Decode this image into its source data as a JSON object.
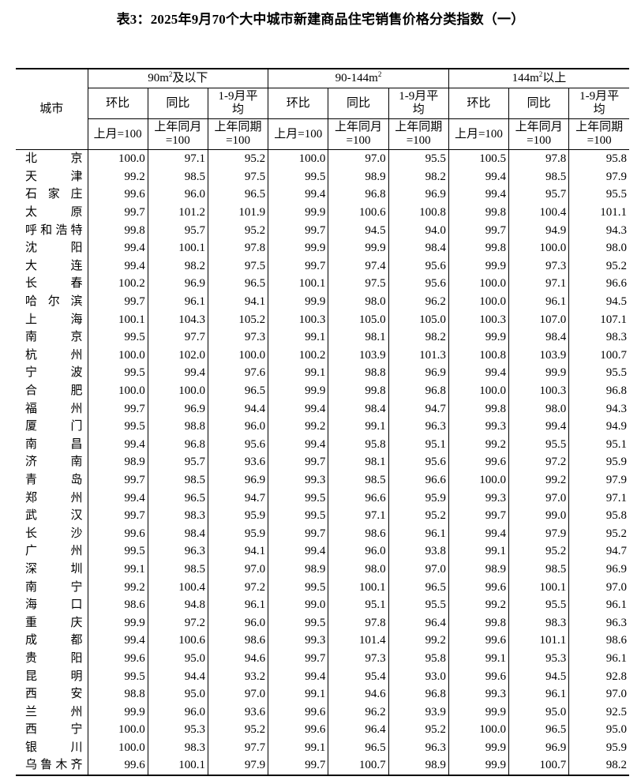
{
  "title": "表3：2025年9月70个大中城市新建商品住宅销售价格分类指数（一）",
  "header": {
    "city": "城市",
    "groups": [
      {
        "label": "90m",
        "sup": "2",
        "suffix": "及以下"
      },
      {
        "label": "90-144m",
        "sup": "2",
        "suffix": ""
      },
      {
        "label": "144m",
        "sup": "2",
        "suffix": "以上"
      }
    ],
    "sub": [
      {
        "label": "环比",
        "unit": "上月=100"
      },
      {
        "label": "同比",
        "unit": "上年同月=100"
      },
      {
        "label": "1-9月平均",
        "unit": "上年同期=100"
      }
    ]
  },
  "rows": [
    {
      "city": "北京",
      "v": [
        "100.0",
        "97.1",
        "95.2",
        "100.0",
        "97.0",
        "95.5",
        "100.5",
        "97.8",
        "95.8"
      ]
    },
    {
      "city": "天津",
      "v": [
        "99.2",
        "98.5",
        "97.5",
        "99.5",
        "98.9",
        "98.2",
        "99.4",
        "98.5",
        "97.9"
      ]
    },
    {
      "city": "石家庄",
      "v": [
        "99.6",
        "96.0",
        "96.5",
        "99.4",
        "96.8",
        "96.9",
        "99.4",
        "95.7",
        "95.5"
      ]
    },
    {
      "city": "太原",
      "v": [
        "99.7",
        "101.2",
        "101.9",
        "99.9",
        "100.6",
        "100.8",
        "99.8",
        "100.4",
        "101.1"
      ]
    },
    {
      "city": "呼和浩特",
      "v": [
        "99.8",
        "95.7",
        "95.2",
        "99.7",
        "94.5",
        "94.0",
        "99.7",
        "94.9",
        "94.3"
      ]
    },
    {
      "city": "沈阳",
      "v": [
        "99.4",
        "100.1",
        "97.8",
        "99.9",
        "99.9",
        "98.4",
        "99.8",
        "100.0",
        "98.0"
      ]
    },
    {
      "city": "大连",
      "v": [
        "99.4",
        "98.2",
        "97.5",
        "99.7",
        "97.4",
        "95.6",
        "99.9",
        "97.3",
        "95.2"
      ]
    },
    {
      "city": "长春",
      "v": [
        "100.2",
        "96.9",
        "96.5",
        "100.1",
        "97.5",
        "95.6",
        "100.0",
        "97.1",
        "96.6"
      ]
    },
    {
      "city": "哈尔滨",
      "v": [
        "99.7",
        "96.1",
        "94.1",
        "99.9",
        "98.0",
        "96.2",
        "100.0",
        "96.1",
        "94.5"
      ]
    },
    {
      "city": "上海",
      "v": [
        "100.1",
        "104.3",
        "105.2",
        "100.3",
        "105.0",
        "105.0",
        "100.3",
        "107.0",
        "107.1"
      ]
    },
    {
      "city": "南京",
      "v": [
        "99.5",
        "97.7",
        "97.3",
        "99.1",
        "98.1",
        "98.2",
        "99.9",
        "98.4",
        "98.3"
      ]
    },
    {
      "city": "杭州",
      "v": [
        "100.0",
        "102.0",
        "100.0",
        "100.2",
        "103.9",
        "101.3",
        "100.8",
        "103.9",
        "100.7"
      ]
    },
    {
      "city": "宁波",
      "v": [
        "99.5",
        "99.4",
        "97.6",
        "99.1",
        "98.8",
        "96.9",
        "99.4",
        "99.9",
        "95.5"
      ]
    },
    {
      "city": "合肥",
      "v": [
        "100.0",
        "100.0",
        "96.5",
        "99.9",
        "99.8",
        "96.8",
        "100.0",
        "100.3",
        "96.8"
      ]
    },
    {
      "city": "福州",
      "v": [
        "99.7",
        "96.9",
        "94.4",
        "99.4",
        "98.4",
        "94.7",
        "99.8",
        "98.0",
        "94.3"
      ]
    },
    {
      "city": "厦门",
      "v": [
        "99.5",
        "98.8",
        "96.0",
        "99.2",
        "99.1",
        "96.3",
        "99.3",
        "99.4",
        "94.9"
      ]
    },
    {
      "city": "南昌",
      "v": [
        "99.4",
        "96.8",
        "95.6",
        "99.4",
        "95.8",
        "95.1",
        "99.2",
        "95.5",
        "95.1"
      ]
    },
    {
      "city": "济南",
      "v": [
        "98.9",
        "95.7",
        "93.6",
        "99.7",
        "98.1",
        "95.6",
        "99.6",
        "97.2",
        "95.9"
      ]
    },
    {
      "city": "青岛",
      "v": [
        "99.7",
        "98.5",
        "96.9",
        "99.3",
        "98.5",
        "96.6",
        "100.0",
        "99.2",
        "97.9"
      ]
    },
    {
      "city": "郑州",
      "v": [
        "99.4",
        "96.5",
        "94.7",
        "99.5",
        "96.6",
        "95.9",
        "99.3",
        "97.0",
        "97.1"
      ]
    },
    {
      "city": "武汉",
      "v": [
        "99.7",
        "98.3",
        "95.9",
        "99.5",
        "97.1",
        "95.2",
        "99.7",
        "99.0",
        "95.8"
      ]
    },
    {
      "city": "长沙",
      "v": [
        "99.6",
        "98.4",
        "95.9",
        "99.7",
        "98.6",
        "96.1",
        "99.4",
        "97.9",
        "95.2"
      ]
    },
    {
      "city": "广州",
      "v": [
        "99.5",
        "96.3",
        "94.1",
        "99.4",
        "96.0",
        "93.8",
        "99.1",
        "95.2",
        "94.7"
      ]
    },
    {
      "city": "深圳",
      "v": [
        "99.1",
        "98.5",
        "97.0",
        "98.9",
        "98.0",
        "97.0",
        "98.9",
        "98.5",
        "96.9"
      ]
    },
    {
      "city": "南宁",
      "v": [
        "99.2",
        "100.4",
        "97.2",
        "99.5",
        "100.1",
        "96.5",
        "99.6",
        "100.1",
        "97.0"
      ]
    },
    {
      "city": "海口",
      "v": [
        "98.6",
        "94.8",
        "96.1",
        "99.0",
        "95.1",
        "95.5",
        "99.2",
        "95.5",
        "96.1"
      ]
    },
    {
      "city": "重庆",
      "v": [
        "99.9",
        "97.2",
        "96.0",
        "99.5",
        "97.8",
        "96.4",
        "99.8",
        "98.3",
        "96.3"
      ]
    },
    {
      "city": "成都",
      "v": [
        "99.4",
        "100.6",
        "98.6",
        "99.3",
        "101.4",
        "99.2",
        "99.6",
        "101.1",
        "98.6"
      ]
    },
    {
      "city": "贵阳",
      "v": [
        "99.6",
        "95.0",
        "94.6",
        "99.7",
        "97.3",
        "95.8",
        "99.1",
        "95.3",
        "96.1"
      ]
    },
    {
      "city": "昆明",
      "v": [
        "99.5",
        "94.4",
        "93.2",
        "99.4",
        "95.4",
        "93.0",
        "99.6",
        "94.5",
        "92.8"
      ]
    },
    {
      "city": "西安",
      "v": [
        "98.8",
        "95.0",
        "97.0",
        "99.1",
        "94.6",
        "96.8",
        "99.3",
        "96.1",
        "97.0"
      ]
    },
    {
      "city": "兰州",
      "v": [
        "99.9",
        "96.0",
        "93.6",
        "99.6",
        "96.2",
        "93.9",
        "99.9",
        "95.0",
        "92.5"
      ]
    },
    {
      "city": "西宁",
      "v": [
        "100.0",
        "95.3",
        "95.2",
        "99.6",
        "96.4",
        "95.2",
        "100.0",
        "96.5",
        "95.0"
      ]
    },
    {
      "city": "银川",
      "v": [
        "100.0",
        "98.3",
        "97.7",
        "99.1",
        "96.5",
        "96.3",
        "99.9",
        "96.9",
        "95.9"
      ]
    },
    {
      "city": "乌鲁木齐",
      "v": [
        "99.6",
        "100.1",
        "97.9",
        "99.7",
        "100.7",
        "98.9",
        "99.9",
        "100.7",
        "98.2"
      ]
    }
  ]
}
